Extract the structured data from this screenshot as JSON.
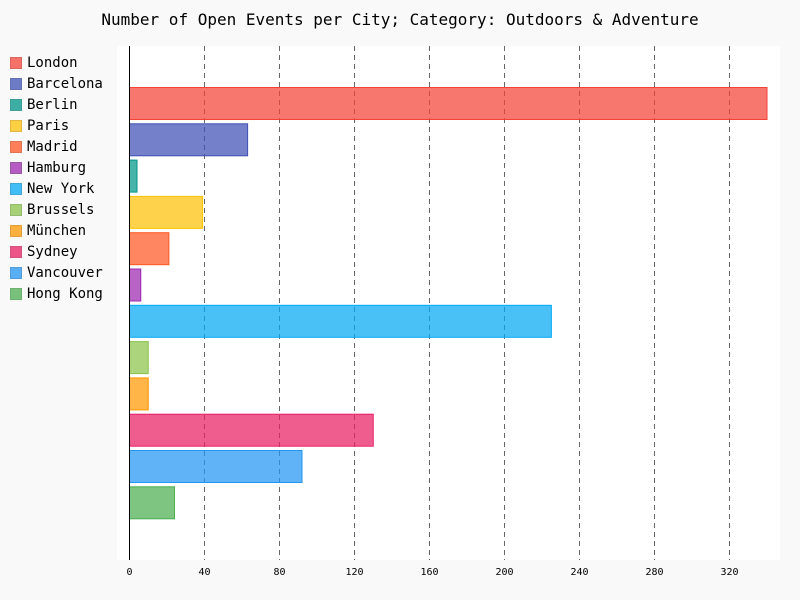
{
  "chart_data": {
    "type": "bar",
    "orientation": "horizontal",
    "title": "Number of Open Events per City; Category: Outdoors & Adventure",
    "categories": [
      "London",
      "Barcelona",
      "Berlin",
      "Paris",
      "Madrid",
      "Hamburg",
      "New York",
      "Brussels",
      "München",
      "Sydney",
      "Vancouver",
      "Hong Kong"
    ],
    "values": [
      340,
      63,
      4,
      39,
      21,
      6,
      225,
      10,
      10,
      130,
      92,
      24
    ],
    "colors": [
      "#f44336",
      "#3f51b5",
      "#009688",
      "#ffc107",
      "#ff5722",
      "#9c27b0",
      "#03a9f4",
      "#8bc34a",
      "#ff9800",
      "#e91e63",
      "#2196f3",
      "#4caf50"
    ],
    "xlim": [
      0,
      340
    ],
    "xticks": [
      "0",
      "40",
      "80",
      "120",
      "160",
      "200",
      "240",
      "280",
      "320"
    ],
    "xlabel": "",
    "ylabel": "",
    "grid": "x-dashed",
    "legend_position": "left"
  }
}
